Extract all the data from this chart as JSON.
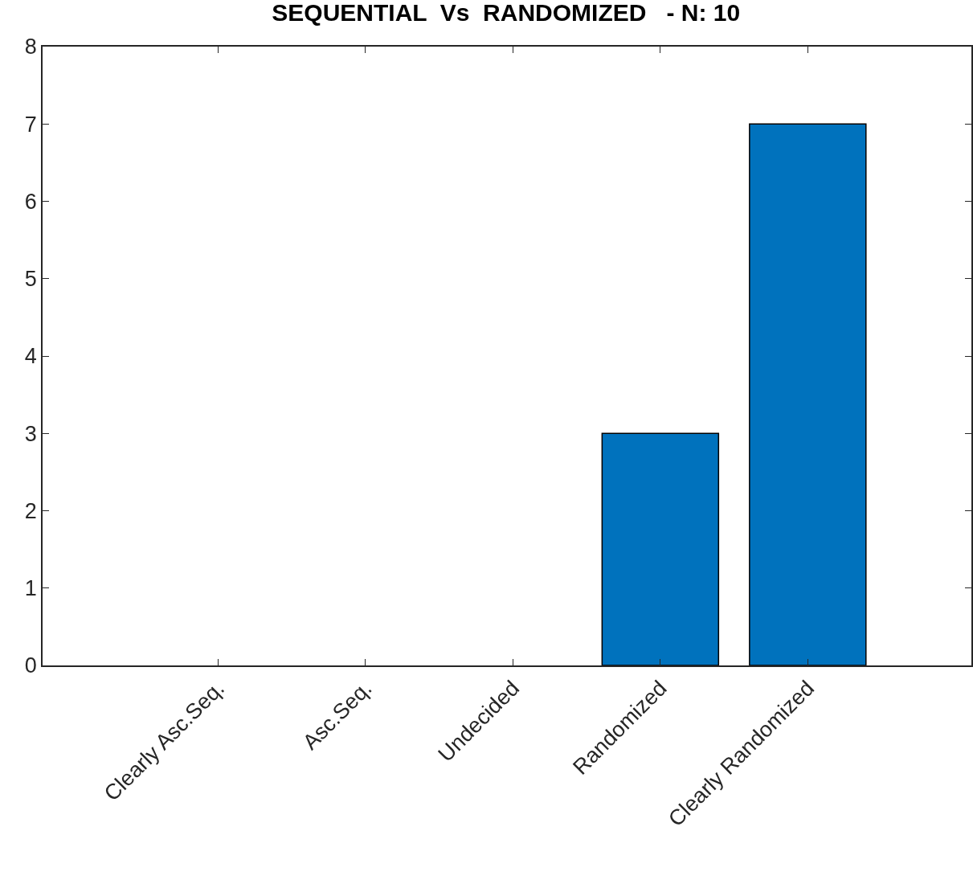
{
  "chart_data": {
    "type": "bar",
    "title": "SEQUENTIAL  Vs  RANDOMIZED   - N: 10",
    "categories": [
      "Clearly Asc.Seq.",
      "Asc.Seq.",
      "Undecided",
      "Randomized",
      "Clearly Randomized"
    ],
    "values": [
      0,
      0,
      0,
      3,
      7
    ],
    "color": "#0072bd",
    "ylim": [
      0,
      8
    ],
    "yticks": [
      0,
      1,
      2,
      3,
      4,
      5,
      6,
      7,
      8
    ]
  }
}
